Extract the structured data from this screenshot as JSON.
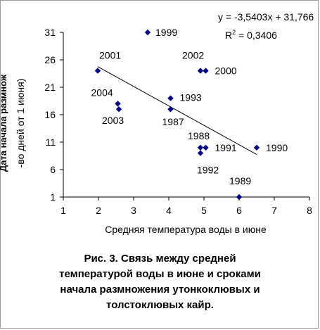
{
  "chart_data": {
    "type": "scatter",
    "xlabel": "Средняя температура воды в июне",
    "ylabel_lines": [
      "Дата начала размнож",
      "-во дней от 1 июня)"
    ],
    "xlim": [
      1,
      8
    ],
    "ylim": [
      1,
      31
    ],
    "x_ticks": [
      1,
      2,
      3,
      4,
      5,
      6,
      7,
      8
    ],
    "y_ticks": [
      1,
      6,
      11,
      16,
      21,
      26,
      31
    ],
    "x_tick_labels": [
      "1",
      "2",
      "3",
      "4",
      "5",
      "6",
      "7",
      "8"
    ],
    "y_tick_labels": [
      "1",
      "6",
      "11",
      "16",
      "21",
      "26",
      "31"
    ],
    "points": [
      {
        "label": "1999",
        "x": 3.4,
        "y": 31
      },
      {
        "label": "2001",
        "x": 1.98,
        "y": 24
      },
      {
        "label": "2002",
        "x": 4.9,
        "y": 24
      },
      {
        "label": "2000",
        "x": 5.05,
        "y": 24
      },
      {
        "label": "1993",
        "x": 4.05,
        "y": 19
      },
      {
        "label": "2004",
        "x": 2.55,
        "y": 18
      },
      {
        "label": "2003",
        "x": 2.58,
        "y": 17
      },
      {
        "label": "1987",
        "x": 4.05,
        "y": 17
      },
      {
        "label": "1988",
        "x": 4.9,
        "y": 10
      },
      {
        "label": "1991",
        "x": 5.05,
        "y": 10
      },
      {
        "label": "1992",
        "x": 4.9,
        "y": 9
      },
      {
        "label": "1990",
        "x": 6.5,
        "y": 10
      },
      {
        "label": "1989",
        "x": 6.0,
        "y": 1
      }
    ],
    "trendline": {
      "slope": -3.5403,
      "intercept": 31.766,
      "x_range": [
        1.98,
        6.5
      ],
      "equation": "y = -3,5403x + 31,766",
      "r2_prefix": "R",
      "r2_sup": "2",
      "r2_value": " = 0,3406"
    },
    "grid": false,
    "marker_color": "#000080",
    "line_color": "#000000"
  },
  "caption_lines": [
    "Рис. 3. Связь между средней",
    "температурой воды в июне и сроками",
    "начала размножения утонкоклювых и",
    "толстоклювых кайр."
  ]
}
